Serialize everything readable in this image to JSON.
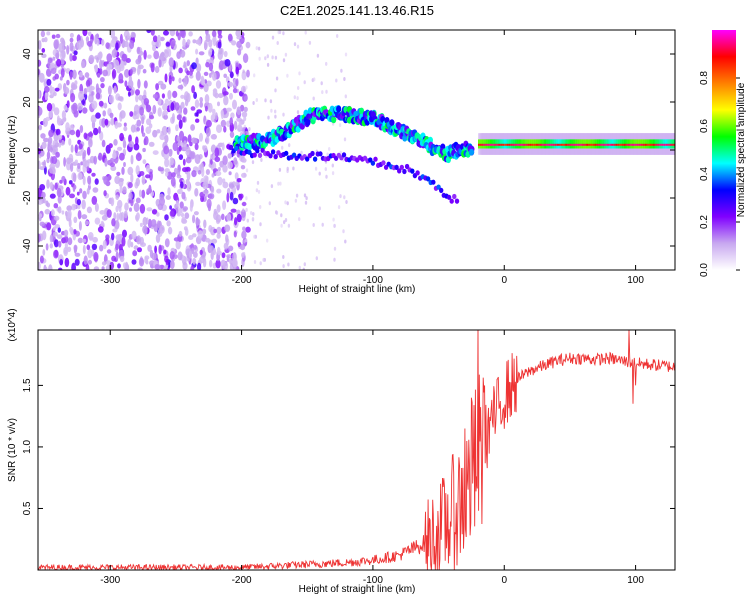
{
  "title": "C2E1.2025.141.13.46.R15",
  "chart_data": [
    {
      "type": "heatmap",
      "description_free": true,
      "xlabel": "Height of straight line (km)",
      "ylabel": "Frequency (Hz)",
      "xlim": [
        -355,
        130
      ],
      "ylim": [
        -50,
        50
      ],
      "xticks": [
        -300,
        -200,
        -100,
        0,
        100
      ],
      "yticks": [
        -40,
        -20,
        0,
        20,
        40
      ],
      "colorbar": {
        "label": "Normalized spectral amplitude",
        "range": [
          0,
          1
        ],
        "ticks": [
          0.0,
          0.2,
          0.4,
          0.6,
          0.8
        ],
        "colors": [
          "#ffffff",
          "#c8a8f0",
          "#8000ff",
          "#0000ff",
          "#00ffff",
          "#00ff00",
          "#ffff00",
          "#ff8000",
          "#ff0000",
          "#ff00ff"
        ]
      },
      "features": {
        "noise_region_x": [
          -355,
          -205
        ],
        "arc_ridge": [
          [
            -205,
            3
          ],
          [
            -180,
            4
          ],
          [
            -160,
            10
          ],
          [
            -145,
            15
          ],
          [
            -120,
            15
          ],
          [
            -100,
            13
          ],
          [
            -80,
            8
          ],
          [
            -60,
            3
          ],
          [
            -45,
            -2
          ],
          [
            -35,
            0
          ],
          [
            -20,
            1
          ],
          [
            0,
            2
          ],
          [
            130,
            2
          ]
        ],
        "lower_branch": [
          [
            -210,
            0
          ],
          [
            -170,
            -2
          ],
          [
            -130,
            -3
          ],
          [
            -100,
            -5
          ],
          [
            -75,
            -8
          ],
          [
            -60,
            -12
          ],
          [
            -45,
            -18
          ],
          [
            -35,
            -22
          ]
        ],
        "carrier_band_x": [
          -20,
          130
        ],
        "carrier_frequency": 2
      }
    },
    {
      "type": "line",
      "xlabel": "Height of straight line (km)",
      "ylabel": "SNR (10 * v/v)",
      "y_multiplier": "(x10^4)",
      "xlim": [
        -355,
        130
      ],
      "ylim": [
        0,
        1.95
      ],
      "xticks": [
        -300,
        -200,
        -100,
        0,
        100
      ],
      "yticks": [
        0.5,
        1.0,
        1.5
      ],
      "color": "#ee3333",
      "series": [
        {
          "x": [
            -355,
            -300,
            -250,
            -200,
            -180,
            -160,
            -140,
            -120,
            -100,
            -80,
            -60,
            -50,
            -40,
            -30,
            -25,
            -20,
            -15,
            -10,
            -5,
            0,
            10,
            20,
            30,
            40,
            50,
            60,
            70,
            80,
            90,
            100,
            110,
            120,
            130
          ],
          "values": [
            0.02,
            0.02,
            0.02,
            0.02,
            0.03,
            0.04,
            0.05,
            0.06,
            0.08,
            0.12,
            0.22,
            0.3,
            0.45,
            0.6,
            0.75,
            0.9,
            1.05,
            1.18,
            1.3,
            1.42,
            1.55,
            1.62,
            1.66,
            1.7,
            1.72,
            1.72,
            1.71,
            1.72,
            1.7,
            1.68,
            1.67,
            1.66,
            1.65
          ],
          "spikes": [
            [
              -20,
              2.0
            ],
            [
              -25,
              1.4
            ],
            [
              -30,
              1.15
            ],
            [
              -15,
              1.5
            ],
            [
              -10,
              1.3
            ],
            [
              95,
              1.95
            ],
            [
              98,
              1.35
            ],
            [
              100,
              1.5
            ]
          ]
        }
      ]
    }
  ]
}
